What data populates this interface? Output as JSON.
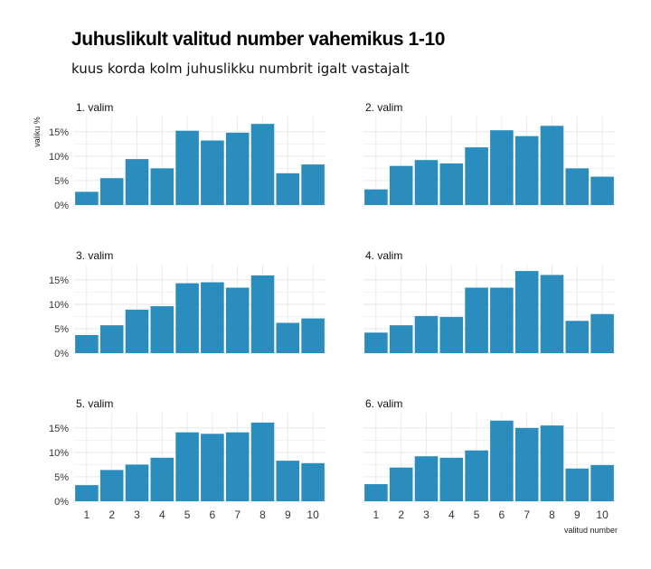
{
  "chart_data": {
    "type": "bar",
    "title": "Juhuslikult valitud number vahemikus 1-10",
    "subtitle": "kuus korda kolm juhuslikku numbrit igalt vastajalt",
    "xlabel": "valitud number",
    "ylabel": "valiku %",
    "categories": [
      "1",
      "2",
      "3",
      "4",
      "5",
      "6",
      "7",
      "8",
      "9",
      "10"
    ],
    "ylim": [
      0,
      17
    ],
    "yticks": [
      "0%",
      "5%",
      "10%",
      "15%"
    ],
    "grid": true,
    "bar_color": "#2b8cbe",
    "grid_color": "#e5e5e5",
    "panels": [
      {
        "name": "1. valim",
        "values": [
          2.7,
          5.5,
          9.4,
          7.5,
          15.2,
          13.2,
          14.8,
          16.6,
          6.5,
          8.3
        ]
      },
      {
        "name": "2. valim",
        "values": [
          3.2,
          8.0,
          9.2,
          8.5,
          11.8,
          15.3,
          14.1,
          16.2,
          7.5,
          5.8
        ]
      },
      {
        "name": "3. valim",
        "values": [
          3.7,
          5.7,
          8.9,
          9.6,
          14.3,
          14.5,
          13.4,
          15.9,
          6.2,
          7.1
        ]
      },
      {
        "name": "4. valim",
        "values": [
          4.2,
          5.7,
          7.6,
          7.4,
          13.4,
          13.4,
          16.8,
          16.0,
          6.6,
          8.0
        ]
      },
      {
        "name": "5. valim",
        "values": [
          3.3,
          6.4,
          7.5,
          8.9,
          14.1,
          13.8,
          14.1,
          16.1,
          8.3,
          7.8
        ]
      },
      {
        "name": "6. valim",
        "values": [
          3.5,
          6.9,
          9.2,
          8.9,
          10.4,
          16.5,
          15.0,
          15.5,
          6.7,
          7.4
        ]
      }
    ]
  }
}
